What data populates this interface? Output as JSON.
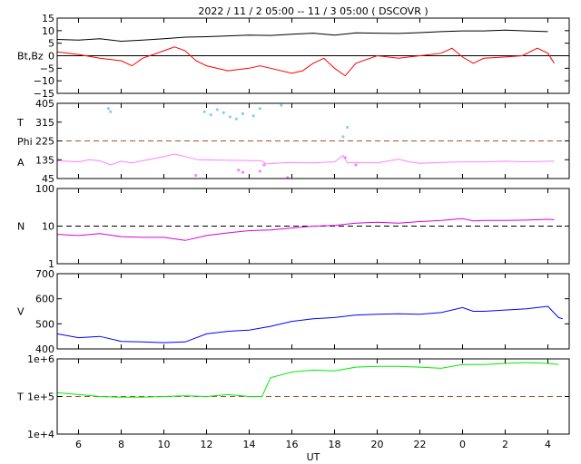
{
  "chart_data": {
    "type": "line",
    "title": "2022 / 11 / 2   05:00 -- 11 / 3   05:00 ( DSCOVR )",
    "xlabel": "UT",
    "x_ticks": [
      "6",
      "8",
      "10",
      "12",
      "14",
      "16",
      "18",
      "20",
      "22",
      "0",
      "2",
      "4"
    ],
    "x_range": [
      5,
      29
    ],
    "panels": [
      {
        "id": "b",
        "ylabel": "Bt,Bz",
        "ylim": [
          -15,
          15
        ],
        "ticks": [
          "15",
          "10",
          "5",
          "0",
          "−5",
          "−10",
          "−15"
        ],
        "tick_values": [
          15,
          10,
          5,
          0,
          -5,
          -10,
          -15
        ],
        "ref_lines": [
          {
            "value": 0,
            "style": "solid",
            "color": "#000000"
          }
        ],
        "series": [
          {
            "type": "line",
            "color": "#000000",
            "points": [
              [
                5,
                6.5
              ],
              [
                6,
                6.2
              ],
              [
                7,
                6.8
              ],
              [
                8,
                5.8
              ],
              [
                9,
                6.2
              ],
              [
                10,
                6.8
              ],
              [
                11,
                7.4
              ],
              [
                12,
                7.6
              ],
              [
                13,
                7.9
              ],
              [
                14,
                8.2
              ],
              [
                15,
                8.1
              ],
              [
                16,
                8.6
              ],
              [
                17,
                9.0
              ],
              [
                18,
                8.2
              ],
              [
                19,
                9.1
              ],
              [
                20,
                9.0
              ],
              [
                21,
                8.9
              ],
              [
                22,
                9.2
              ],
              [
                23,
                9.6
              ],
              [
                24,
                9.9
              ],
              [
                25,
                9.9
              ],
              [
                26,
                10.2
              ],
              [
                27,
                9.9
              ],
              [
                28,
                9.6
              ]
            ]
          },
          {
            "type": "line",
            "color": "#ff0000",
            "points": [
              [
                5,
                1.5
              ],
              [
                6,
                0.5
              ],
              [
                7,
                -1
              ],
              [
                8,
                -2
              ],
              [
                8.5,
                -4
              ],
              [
                9,
                -1
              ],
              [
                10,
                2
              ],
              [
                10.5,
                3.5
              ],
              [
                11,
                2
              ],
              [
                11.5,
                -2
              ],
              [
                12,
                -4
              ],
              [
                13,
                -6
              ],
              [
                14,
                -5
              ],
              [
                14.5,
                -4
              ],
              [
                15,
                -5
              ],
              [
                16,
                -7
              ],
              [
                16.5,
                -6
              ],
              [
                17,
                -3
              ],
              [
                17.5,
                -1
              ],
              [
                18,
                -5
              ],
              [
                18.5,
                -8
              ],
              [
                19,
                -3
              ],
              [
                20,
                0
              ],
              [
                21,
                -1
              ],
              [
                22,
                0
              ],
              [
                23,
                1
              ],
              [
                23.5,
                3
              ],
              [
                24,
                -0.5
              ],
              [
                24.5,
                -3
              ],
              [
                25,
                -1
              ],
              [
                26,
                -0.5
              ],
              [
                26.8,
                0
              ],
              [
                27.5,
                3
              ],
              [
                28,
                1
              ],
              [
                28.3,
                -3
              ]
            ]
          }
        ]
      },
      {
        "id": "angles",
        "ylabel_lines": [
          "T",
          "Phi",
          "A"
        ],
        "ylim": [
          45,
          405
        ],
        "ticks": [
          "405",
          "315",
          "225",
          "135",
          "45"
        ],
        "tick_values": [
          405,
          315,
          225,
          135,
          45
        ],
        "ref_lines": [
          {
            "value": 225,
            "style": "dashed",
            "color": "#a0522d"
          }
        ],
        "series": [
          {
            "type": "scatter",
            "color": "#87cefa",
            "points": [
              [
                7.4,
                380
              ],
              [
                7.5,
                365
              ],
              [
                11.9,
                365
              ],
              [
                12.2,
                350
              ],
              [
                12.5,
                375
              ],
              [
                12.8,
                360
              ],
              [
                13.1,
                340
              ],
              [
                13.4,
                330
              ],
              [
                13.7,
                355
              ],
              [
                14.2,
                345
              ],
              [
                14.5,
                380
              ],
              [
                15.5,
                395
              ],
              [
                18.4,
                245
              ],
              [
                18.6,
                290
              ]
            ]
          },
          {
            "type": "line",
            "color": "#ff80ff",
            "points": [
              [
                5,
                130
              ],
              [
                6,
                125
              ],
              [
                6.5,
                135
              ],
              [
                7,
                130
              ],
              [
                7.5,
                110
              ],
              [
                8,
                128
              ],
              [
                8.5,
                120
              ],
              [
                9,
                130
              ],
              [
                10,
                150
              ],
              [
                10.5,
                162
              ],
              [
                11,
                150
              ],
              [
                11.6,
                135
              ],
              [
                14.6,
                130
              ],
              [
                14.8,
                115
              ],
              [
                15.5,
                120
              ],
              [
                16,
                122
              ],
              [
                17,
                120
              ],
              [
                18,
                125
              ],
              [
                18.4,
                155
              ],
              [
                18.6,
                120
              ],
              [
                19,
                122
              ],
              [
                20,
                120
              ],
              [
                21,
                138
              ],
              [
                21.5,
                125
              ],
              [
                22,
                118
              ],
              [
                23,
                122
              ],
              [
                24,
                125
              ],
              [
                25,
                125
              ],
              [
                26,
                128
              ],
              [
                27,
                125
              ],
              [
                28,
                128
              ],
              [
                28.3,
                128
              ]
            ]
          },
          {
            "type": "scatter",
            "color": "#ff80ff",
            "points": [
              [
                11.5,
                60
              ],
              [
                13.5,
                85
              ],
              [
                13.7,
                75
              ],
              [
                14.5,
                80
              ],
              [
                14.7,
                110
              ],
              [
                15.8,
                50
              ],
              [
                18.5,
                145
              ],
              [
                19,
                110
              ]
            ]
          }
        ]
      },
      {
        "id": "n",
        "ylabel": "N",
        "ylim_log": [
          0,
          2
        ],
        "ticks": [
          "100",
          "10",
          "1"
        ],
        "tick_values": [
          2,
          1,
          0
        ],
        "ref_lines": [
          {
            "value": 1,
            "style": "dashed",
            "color": "#000000"
          }
        ],
        "series": [
          {
            "type": "line",
            "color": "#dd00dd",
            "points": [
              [
                5,
                0.78
              ],
              [
                6,
                0.75
              ],
              [
                7,
                0.8
              ],
              [
                8,
                0.72
              ],
              [
                9,
                0.7
              ],
              [
                10,
                0.7
              ],
              [
                11,
                0.62
              ],
              [
                12,
                0.75
              ],
              [
                13,
                0.82
              ],
              [
                14,
                0.88
              ],
              [
                15,
                0.9
              ],
              [
                16,
                0.95
              ],
              [
                17,
                1.0
              ],
              [
                18,
                1.02
              ],
              [
                19,
                1.08
              ],
              [
                20,
                1.1
              ],
              [
                21,
                1.08
              ],
              [
                22,
                1.12
              ],
              [
                23,
                1.15
              ],
              [
                24,
                1.2
              ],
              [
                24.5,
                1.14
              ],
              [
                25,
                1.15
              ],
              [
                26,
                1.15
              ],
              [
                27,
                1.16
              ],
              [
                28,
                1.18
              ],
              [
                28.3,
                1.17
              ]
            ]
          }
        ]
      },
      {
        "id": "v",
        "ylabel": "V",
        "ylim": [
          400,
          700
        ],
        "ticks": [
          "700",
          "600",
          "500",
          "400"
        ],
        "tick_values": [
          700,
          600,
          500,
          400
        ],
        "ref_lines": [],
        "series": [
          {
            "type": "line",
            "color": "#0000ff",
            "points": [
              [
                5,
                460
              ],
              [
                6,
                445
              ],
              [
                7,
                450
              ],
              [
                8,
                430
              ],
              [
                9,
                428
              ],
              [
                10,
                425
              ],
              [
                11,
                428
              ],
              [
                12,
                460
              ],
              [
                13,
                470
              ],
              [
                14,
                475
              ],
              [
                15,
                490
              ],
              [
                16,
                510
              ],
              [
                17,
                520
              ],
              [
                18,
                525
              ],
              [
                19,
                535
              ],
              [
                20,
                538
              ],
              [
                21,
                540
              ],
              [
                22,
                538
              ],
              [
                23,
                545
              ],
              [
                24,
                565
              ],
              [
                24.5,
                550
              ],
              [
                25,
                550
              ],
              [
                26,
                555
              ],
              [
                27,
                560
              ],
              [
                28,
                570
              ],
              [
                28.5,
                525
              ],
              [
                28.7,
                520
              ]
            ]
          }
        ]
      },
      {
        "id": "temp",
        "ylabel": "T",
        "ylim_log": [
          4,
          6
        ],
        "ticks": [
          "1e+6",
          "1e+5",
          "1e+4"
        ],
        "tick_values": [
          6,
          5,
          4
        ],
        "ref_lines": [
          {
            "value": 5,
            "style": "dashed",
            "color": "#a0522d"
          }
        ],
        "series": [
          {
            "type": "line",
            "color": "#00ee00",
            "points": [
              [
                5,
                5.1
              ],
              [
                6,
                5.05
              ],
              [
                7,
                5.0
              ],
              [
                8,
                4.98
              ],
              [
                9,
                4.98
              ],
              [
                10,
                5.0
              ],
              [
                11,
                5.02
              ],
              [
                12,
                5.0
              ],
              [
                13,
                5.05
              ],
              [
                14,
                5.0
              ],
              [
                14.6,
                5.0
              ],
              [
                15,
                5.5
              ],
              [
                16,
                5.65
              ],
              [
                17,
                5.7
              ],
              [
                18,
                5.68
              ],
              [
                19,
                5.78
              ],
              [
                20,
                5.8
              ],
              [
                21,
                5.8
              ],
              [
                22,
                5.78
              ],
              [
                23,
                5.75
              ],
              [
                24,
                5.85
              ],
              [
                25,
                5.85
              ],
              [
                26,
                5.88
              ],
              [
                27,
                5.9
              ],
              [
                28,
                5.88
              ],
              [
                28.5,
                5.85
              ]
            ]
          }
        ]
      }
    ]
  }
}
